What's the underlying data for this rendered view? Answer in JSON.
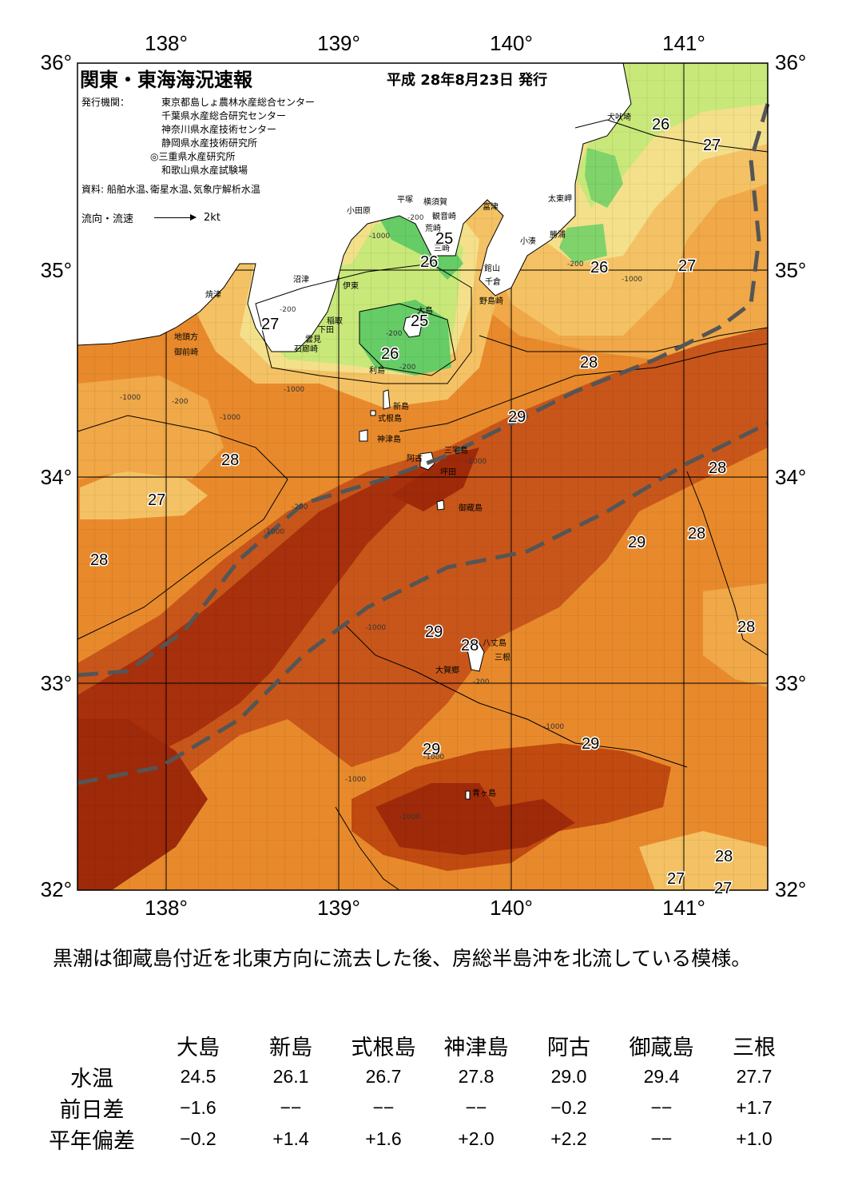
{
  "header": {
    "title": "関東・東海海況速報",
    "issue_date": "平成 28年8月23日 発行",
    "publisher_label": "発行機関：",
    "publishers": [
      "東京都島しょ農林水産総合センター",
      "千葉県水産総合研究センター",
      "神奈川県水産技術センター",
      "静岡県水産技術研究所",
      "◎三重県水産研究所",
      "和歌山県水産試験場"
    ],
    "sources": "資料: 船舶水温､衛星水温､気象庁解析水温",
    "flow_legend_label": "流向・流速",
    "flow_legend_speed": "2kt"
  },
  "axes": {
    "lon_labels": [
      "138°",
      "139°",
      "140°",
      "141°"
    ],
    "lat_labels": [
      "36°",
      "35°",
      "34°",
      "33°",
      "32°"
    ]
  },
  "place_labels": [
    "犬吠埼",
    "太東岬",
    "勝浦",
    "小湊",
    "富津",
    "横須賀",
    "観音崎",
    "平塚",
    "小田原",
    "荒崎",
    "三崎",
    "館山",
    "千倉",
    "野島崎",
    "沼津",
    "伊東",
    "焼津",
    "稲取",
    "下田",
    "雲見",
    "石廊崎",
    "地頭方",
    "御前崎",
    "大島",
    "利島",
    "新島",
    "式根島",
    "神津島",
    "三宅島",
    "阿古",
    "坪田",
    "御蔵島",
    "八丈島",
    "三根",
    "大賀郷",
    "青ヶ島"
  ],
  "isotherm_labels": [
    "26",
    "27",
    "27",
    "25",
    "26",
    "26",
    "27",
    "27",
    "25",
    "26",
    "28",
    "29",
    "28",
    "28",
    "27",
    "28",
    "29",
    "28",
    "28",
    "29",
    "28",
    "29",
    "29",
    "28",
    "27"
  ],
  "depth_labels": [
    "-200",
    "-1000",
    "-200",
    "-1000",
    "-200",
    "-200",
    "-1000",
    "-1000",
    "-200",
    "-1000",
    "-1000",
    "-1000",
    "-200",
    "-1000",
    "-1000",
    "-1000",
    "-200",
    "-1000",
    "-1000",
    "-200"
  ],
  "colors": {
    "temp_25": "#66cc66",
    "temp_26": "#c8e87a",
    "temp_26_5": "#f4e08a",
    "temp_27": "#f0c05a",
    "temp_27_5": "#eea040",
    "temp_28": "#e8862a",
    "temp_28_5": "#d86818",
    "temp_29": "#c04a10",
    "temp_29_5": "#9e2a0a",
    "kuroshio_axis": "#555555",
    "land": "#ffffff"
  },
  "summary": "黒潮は御蔵島付近を北東方向に流去した後、房総半島沖を北流している模様。",
  "table": {
    "headers": [
      "大島",
      "新島",
      "式根島",
      "神津島",
      "阿古",
      "御蔵島",
      "三根"
    ],
    "rows": [
      {
        "label": "水温",
        "values": [
          "24.5",
          "26.1",
          "26.7",
          "27.8",
          "29.0",
          "29.4",
          "27.7"
        ]
      },
      {
        "label": "前日差",
        "values": [
          "−1.6",
          "−−",
          "−−",
          "−−",
          "−0.2",
          "−−",
          "+1.7"
        ]
      },
      {
        "label": "平年偏差",
        "values": [
          "−0.2",
          "+1.4",
          "+1.6",
          "+2.0",
          "+2.2",
          "−−",
          "+1.0"
        ]
      }
    ]
  }
}
